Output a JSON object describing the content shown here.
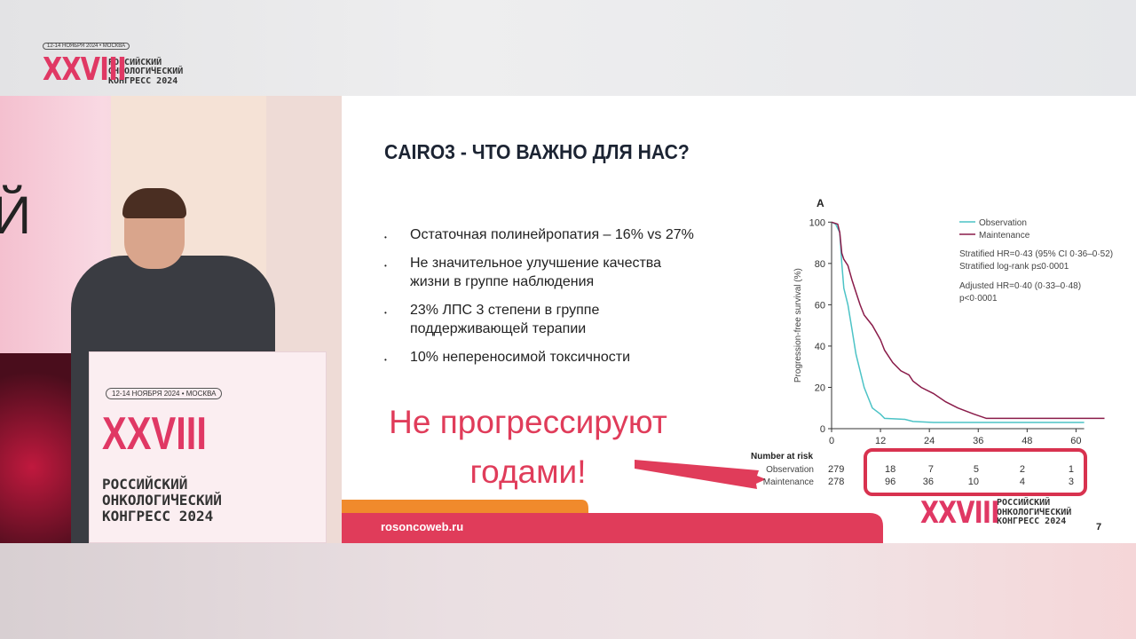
{
  "header_logo": {
    "date": "12-14 НОЯБРЯ 2024 • МОСКВА",
    "numeral": "XXVIII",
    "line1": "РОССИЙСКИЙ",
    "line2": "ОНКОЛОГИЧЕСКИЙ",
    "line3": "КОНГРЕСС 2024"
  },
  "stage": {
    "backdrop_letter": "Й",
    "podium_logo": {
      "date": "12-14 НОЯБРЯ 2024 • МОСКВА",
      "numeral": "XXVIII",
      "line1": "РОССИЙСКИЙ",
      "line2": "ОНКОЛОГИЧЕСКИЙ",
      "line3": "КОНГРЕСС 2024"
    }
  },
  "slide": {
    "title": "CAIRO3 - ЧТО ВАЖНО ДЛЯ НАС?",
    "bullets": [
      "Остаточная полинейропатия – 16% vs 27%",
      "Не значительное улучшение качества жизни в группе наблюдения",
      "23% ЛПС 3 степени в группе поддерживающей терапии",
      "10% непереносимой токсичности"
    ],
    "callout": "Не прогрессируют годами!",
    "footer_url": "rosoncoweb.ru",
    "page_number": "7",
    "footer_logo": {
      "numeral": "XXVIII",
      "line1": "РОССИЙСКИЙ",
      "line2": "ОНКОЛОГИЧЕСКИЙ",
      "line3": "КОНГРЕСС 2024"
    },
    "accent_color": "#e03c5a",
    "orange_color": "#f08a2c"
  },
  "chart_data": {
    "type": "line",
    "panel_label": "A",
    "ylabel": "Progression-free survival (%)",
    "xlabel": "",
    "xlim": [
      0,
      68
    ],
    "ylim": [
      0,
      100
    ],
    "xticks": [
      0,
      12,
      24,
      36,
      48,
      60
    ],
    "yticks": [
      0,
      20,
      40,
      60,
      80,
      100
    ],
    "legend_position": "top-right",
    "series": [
      {
        "name": "Observation",
        "color": "#4cc3c6",
        "x": [
          0,
          1,
          2,
          2.5,
          3,
          4,
          5,
          6,
          7,
          8,
          9,
          10,
          12,
          13,
          18,
          20,
          25,
          62
        ],
        "y": [
          100,
          99,
          95,
          80,
          68,
          60,
          48,
          36,
          28,
          20,
          15,
          10,
          7,
          5,
          4.5,
          3.5,
          3,
          3
        ]
      },
      {
        "name": "Maintenance",
        "color": "#8a1c4a",
        "x": [
          0,
          1.5,
          2,
          2.5,
          3,
          4,
          5,
          6,
          7,
          8,
          10,
          12,
          13,
          15,
          17,
          19,
          20,
          22,
          25,
          28,
          31,
          35,
          38,
          67
        ],
        "y": [
          100,
          99,
          95,
          85,
          82,
          79,
          72,
          66,
          60,
          55,
          50,
          43,
          38,
          32,
          28,
          26,
          23,
          20,
          17,
          13,
          10,
          7,
          5,
          5
        ]
      }
    ],
    "annotations": [
      "Stratified HR=0·43 (95% CI 0·36–0·52)",
      "Stratified log-rank p≤0·0001",
      "Adjusted HR=0·40 (0·33–0·48)",
      "p<0·0001"
    ],
    "risk_table": {
      "title": "Number at risk",
      "rows": [
        {
          "label": "Observation",
          "values": [
            "279",
            "18",
            "7",
            "5",
            "2",
            "1"
          ]
        },
        {
          "label": "Maintenance",
          "values": [
            "278",
            "96",
            "36",
            "10",
            "4",
            "3"
          ]
        }
      ]
    }
  }
}
